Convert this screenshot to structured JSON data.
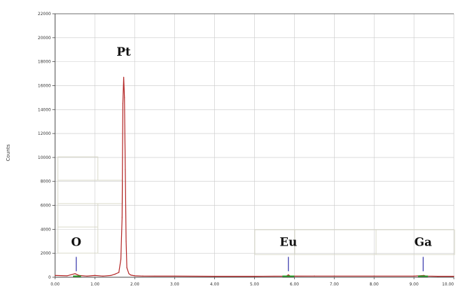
{
  "chart_data": {
    "type": "line",
    "title": "",
    "xlabel": "",
    "ylabel": "Counts",
    "xlim": [
      0,
      10
    ],
    "ylim": [
      0,
      22000
    ],
    "grid": true,
    "x_ticks": [
      "0.00",
      "1.00",
      "2.00",
      "3.00",
      "4.00",
      "5.00",
      "6.00",
      "7.00",
      "8.00",
      "9.00",
      "10.00"
    ],
    "y_ticks": [
      "0",
      "2000",
      "4000",
      "6000",
      "8000",
      "10000",
      "12000",
      "14000",
      "16000",
      "18000",
      "20000",
      "22000"
    ],
    "series": [
      {
        "color": "#b22222",
        "x": [
          0.0,
          0.3,
          0.5,
          0.6,
          0.8,
          1.0,
          1.2,
          1.4,
          1.5,
          1.6,
          1.65,
          1.68,
          1.7,
          1.72,
          1.74,
          1.76,
          1.78,
          1.8,
          1.85,
          1.9,
          2.0,
          2.2,
          2.5,
          3.0,
          4.0,
          5.0,
          5.8,
          5.85,
          5.9,
          6.5,
          7.0,
          8.0,
          9.0,
          9.25,
          9.3,
          9.6,
          10.0
        ],
        "y": [
          150,
          120,
          300,
          150,
          100,
          150,
          100,
          150,
          250,
          400,
          1500,
          5000,
          14500,
          16700,
          15000,
          9000,
          3000,
          800,
          300,
          180,
          120,
          100,
          90,
          90,
          80,
          80,
          90,
          200,
          90,
          100,
          100,
          100,
          100,
          150,
          100,
          80,
          80
        ]
      }
    ],
    "annotations": [
      {
        "label": "Pt",
        "x": 1.72,
        "y": 18500
      },
      {
        "label": "O",
        "x": 0.53,
        "y": 2600
      },
      {
        "label": "Eu",
        "x": 5.85,
        "y": 2600
      },
      {
        "label": "Ga",
        "x": 9.23,
        "y": 2600
      }
    ],
    "markers": [
      {
        "x": 0.53,
        "y_from": 500,
        "y_to": 1700
      },
      {
        "x": 5.85,
        "y_from": 500,
        "y_to": 1700
      },
      {
        "x": 9.23,
        "y_from": 500,
        "y_to": 1700
      }
    ],
    "colors": {
      "line": "#b22222",
      "grid": "#c8c8c8",
      "axis": "#444444",
      "marker": "#3333aa",
      "baseline_fill": "#2ca02c"
    }
  }
}
